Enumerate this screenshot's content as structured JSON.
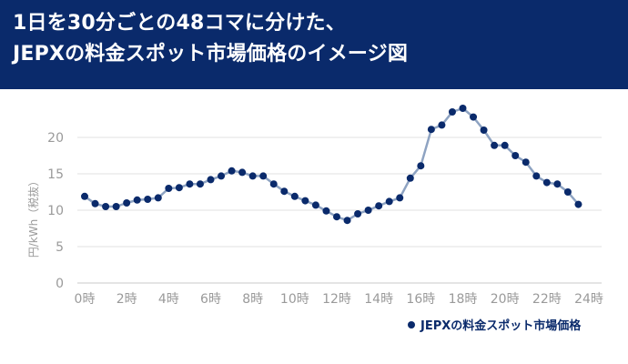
{
  "header": {
    "title_line1": "1日を30分ごとの48コマに分けた、",
    "title_line2": "JEPXの料金スポット市場価格のイメージ図",
    "background": "#0a2a6b",
    "text_color": "#ffffff"
  },
  "chart_data": {
    "type": "line",
    "ylabel": "円/kWh（税抜）",
    "xlabel": "",
    "ylim": [
      0,
      25
    ],
    "yticks": [
      0,
      5,
      10,
      15,
      20
    ],
    "xticks": [
      "0時",
      "2時",
      "4時",
      "6時",
      "8時",
      "10時",
      "12時",
      "14時",
      "16時",
      "18時",
      "20時",
      "22時",
      "24時"
    ],
    "grid": true,
    "legend_position": "bottom-right",
    "series": [
      {
        "name": "JEPXの料金スポット市場価格",
        "line_color": "#8ea3c2",
        "marker_color": "#0a2a6b",
        "x": [
          0,
          0.5,
          1,
          1.5,
          2,
          2.5,
          3,
          3.5,
          4,
          4.5,
          5,
          5.5,
          6,
          6.5,
          7,
          7.5,
          8,
          8.5,
          9,
          9.5,
          10,
          10.5,
          11,
          11.5,
          12,
          12.5,
          13,
          13.5,
          14,
          14.5,
          15,
          15.5,
          16,
          16.5,
          17,
          17.5,
          18,
          18.5,
          19,
          19.5,
          20,
          20.5,
          21,
          21.5,
          22,
          22.5,
          23,
          23.5
        ],
        "values": [
          11.9,
          10.9,
          10.5,
          10.5,
          11.0,
          11.4,
          11.5,
          11.7,
          13.0,
          13.1,
          13.6,
          13.6,
          14.2,
          14.7,
          15.4,
          15.2,
          14.7,
          14.7,
          13.6,
          12.6,
          11.9,
          11.3,
          10.7,
          9.9,
          9.1,
          8.6,
          9.5,
          10.0,
          10.6,
          11.2,
          11.7,
          14.4,
          16.1,
          21.1,
          21.7,
          23.5,
          24.0,
          22.8,
          21.0,
          18.9,
          18.9,
          17.5,
          16.6,
          14.7,
          13.8,
          13.6,
          12.5,
          10.8
        ]
      }
    ]
  }
}
